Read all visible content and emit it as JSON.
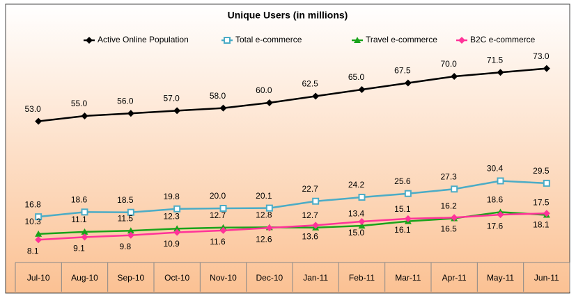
{
  "chart_data": {
    "type": "line",
    "title": "Unique Users (in millions)",
    "categories": [
      "Jul-10",
      "Aug-10",
      "Sep-10",
      "Oct-10",
      "Nov-10",
      "Dec-10",
      "Jan-11",
      "Feb-11",
      "Mar-11",
      "Apr-11",
      "May-11",
      "Jun-11"
    ],
    "series": [
      {
        "name": "Active Online Population",
        "color": "#000000",
        "values": [
          53.0,
          55.0,
          56.0,
          57.0,
          58.0,
          60.0,
          62.5,
          65.0,
          67.5,
          70.0,
          71.5,
          73.0
        ],
        "value_labels": [
          "53.0",
          "55.0",
          "56.0",
          "57.0",
          "58.0",
          "60.0",
          "62.5",
          "65.0",
          "67.5",
          "70.0",
          "71.5",
          "73.0"
        ]
      },
      {
        "name": "Total e-commerce",
        "color": "#4bacc6",
        "values": [
          16.8,
          18.6,
          18.5,
          19.8,
          20.0,
          20.1,
          22.7,
          24.2,
          25.6,
          27.3,
          30.4,
          29.5
        ],
        "value_labels": [
          "16.8",
          "18.6",
          "18.5",
          "19.8",
          "20.0",
          "20.1",
          "22.7",
          "24.2",
          "25.6",
          "27.3",
          "30.4",
          "29.5"
        ]
      },
      {
        "name": "Travel e-commerce",
        "color": "#1aa31a",
        "values": [
          10.3,
          11.1,
          11.5,
          12.3,
          12.7,
          12.8,
          12.7,
          13.4,
          15.1,
          16.2,
          18.6,
          17.5
        ],
        "value_labels": [
          "10.3",
          "11.1",
          "11.5",
          "12.3",
          "12.7",
          "12.8",
          "12.7",
          "13.4",
          "15.1",
          "16.2",
          "18.6",
          "17.5"
        ]
      },
      {
        "name": "B2C e-commerce",
        "color": "#ff3399",
        "values": [
          8.1,
          9.1,
          9.8,
          10.9,
          11.6,
          12.6,
          13.6,
          15.0,
          16.1,
          16.5,
          17.6,
          18.1
        ],
        "value_labels": [
          "8.1",
          "9.1",
          "9.8",
          "10.9",
          "11.6",
          "12.6",
          "13.6",
          "15.0",
          "16.1",
          "16.5",
          "17.6",
          "18.1"
        ]
      }
    ],
    "ylim": [
      0,
      80
    ]
  }
}
